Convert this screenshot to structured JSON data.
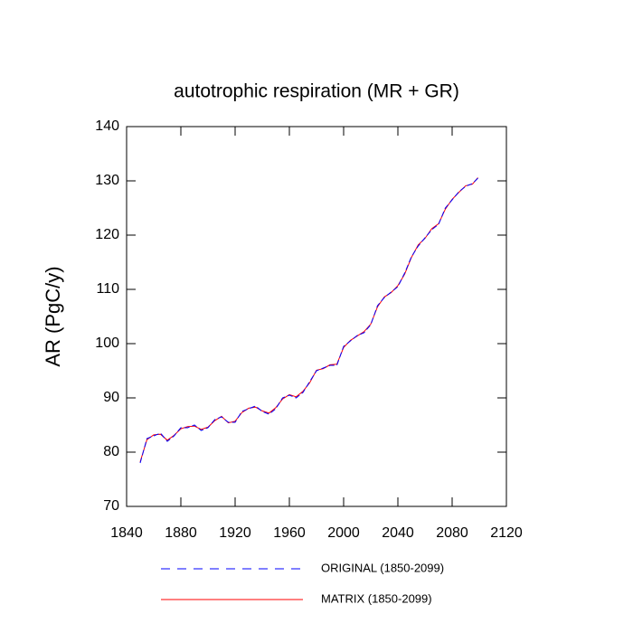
{
  "chart_data": {
    "type": "line",
    "title": "autotrophic respiration (MR + GR)",
    "y_label": "AR  (PgC/y)",
    "x": [
      1850,
      1855,
      1860,
      1865,
      1870,
      1875,
      1880,
      1885,
      1890,
      1895,
      1900,
      1905,
      1910,
      1915,
      1920,
      1925,
      1930,
      1935,
      1940,
      1945,
      1950,
      1955,
      1960,
      1965,
      1970,
      1975,
      1980,
      1985,
      1990,
      1995,
      2000,
      2005,
      2010,
      2015,
      2020,
      2025,
      2030,
      2035,
      2040,
      2045,
      2050,
      2055,
      2060,
      2065,
      2070,
      2075,
      2080,
      2085,
      2090,
      2095,
      2099
    ],
    "series": [
      {
        "name": "ORIGINAL (1850-2099)",
        "color": "#0000ff",
        "dash": true,
        "values": [
          78,
          82.5,
          83,
          83.5,
          82,
          83,
          84.5,
          84.5,
          85,
          84,
          84.5,
          86,
          86.5,
          85.5,
          85.5,
          87.5,
          88,
          88.5,
          87.5,
          87,
          88,
          90,
          90.5,
          90,
          91,
          93,
          95,
          95.5,
          96,
          96,
          99.5,
          100.5,
          101.5,
          102,
          103.5,
          107,
          108.5,
          109.5,
          110.5,
          113,
          116,
          118,
          119.5,
          121,
          122,
          125,
          126.5,
          128,
          129,
          129.5,
          130.5
        ]
      },
      {
        "name": "MATRIX (1850-2099)",
        "color": "#ff0000",
        "dash": false,
        "values": [
          78.2,
          82.3,
          83.2,
          83.3,
          82.2,
          83.1,
          84.3,
          84.7,
          84.8,
          84.2,
          84.6,
          85.8,
          86.6,
          85.4,
          85.7,
          87.3,
          88.1,
          88.3,
          87.6,
          87.2,
          88.2,
          89.8,
          90.6,
          90.2,
          91.2,
          92.8,
          95.1,
          95.4,
          96.1,
          96.2,
          99.3,
          100.6,
          101.4,
          102.2,
          103.6,
          106.8,
          108.6,
          109.4,
          110.7,
          112.8,
          115.9,
          118.2,
          119.4,
          121.2,
          122.1,
          124.8,
          126.6,
          127.9,
          129.1,
          129.4,
          130.6
        ]
      }
    ],
    "xlim": [
      1840,
      2120
    ],
    "xticks": [
      1840,
      1880,
      1920,
      1960,
      2000,
      2040,
      2080,
      2120
    ],
    "ylim": [
      70,
      140
    ],
    "yticks": [
      70,
      80,
      90,
      100,
      110,
      120,
      130,
      140
    ]
  }
}
